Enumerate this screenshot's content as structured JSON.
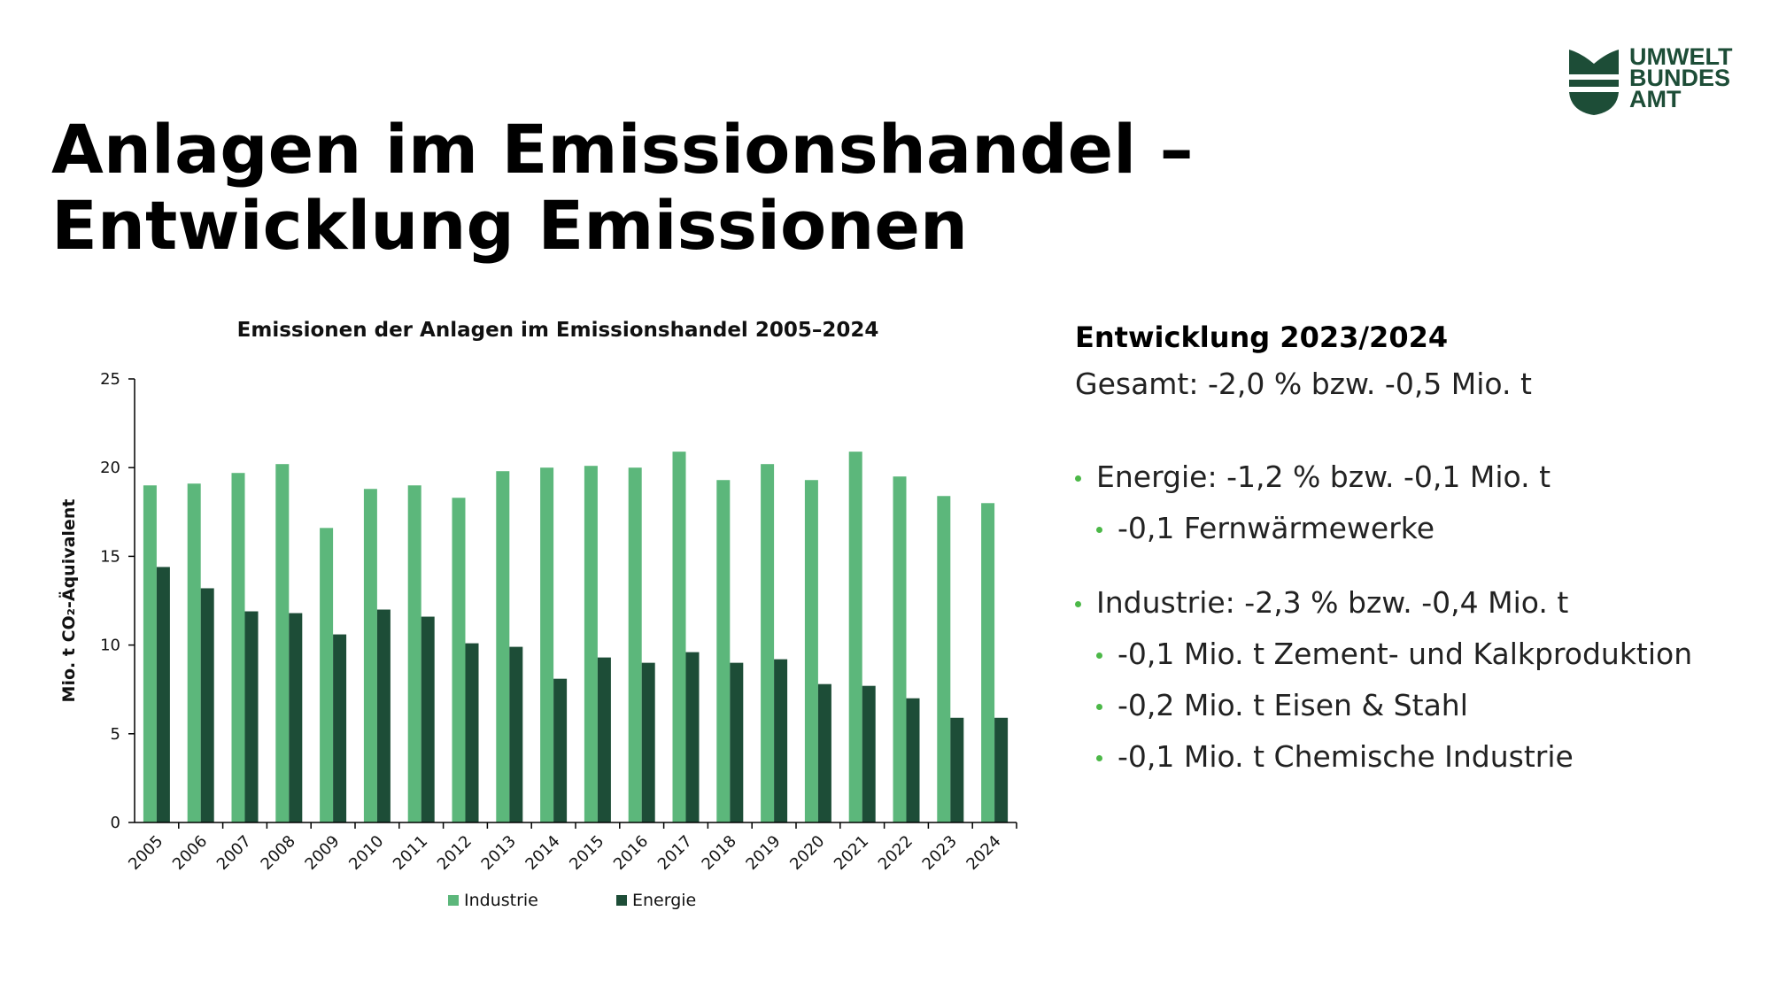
{
  "header": {
    "title_lines": [
      "Anlagen im Emissionshandel –",
      "Entwicklung Emissionen"
    ],
    "logo_lines": [
      "UMWELT",
      "BUNDES",
      "AMT"
    ]
  },
  "chart_data": {
    "type": "bar",
    "title": "Emissionen der Anlagen im Emissionshandel 2005–2024",
    "y_label": "Mio. t CO₂-Äquivalent",
    "categories": [
      "2005",
      "2006",
      "2007",
      "2008",
      "2009",
      "2010",
      "2011",
      "2012",
      "2013",
      "2014",
      "2015",
      "2016",
      "2017",
      "2018",
      "2019",
      "2020",
      "2021",
      "2022",
      "2023",
      "2024"
    ],
    "series": [
      {
        "name": "Industrie",
        "color": "#5cb77b",
        "values": [
          19.0,
          19.1,
          19.7,
          20.2,
          16.6,
          18.8,
          19.0,
          18.3,
          19.8,
          20.0,
          20.1,
          20.0,
          20.9,
          19.3,
          20.2,
          19.3,
          20.9,
          19.5,
          18.4,
          18.0
        ]
      },
      {
        "name": "Energie",
        "color": "#1d4d37",
        "values": [
          14.4,
          13.2,
          11.9,
          11.8,
          10.6,
          12.0,
          11.6,
          10.1,
          9.9,
          8.1,
          9.3,
          9.0,
          9.6,
          9.0,
          9.2,
          7.8,
          7.7,
          7.0,
          5.9,
          5.9
        ]
      }
    ],
    "ylim": [
      0,
      25
    ],
    "yticks": [
      0,
      5,
      10,
      15,
      20,
      25
    ],
    "grid": false
  },
  "summary": {
    "heading": "Entwicklung 2023/2024",
    "total": "Gesamt: -2,0 % bzw. -0,5 Mio. t",
    "groups": [
      {
        "text": "Energie: -1,2 % bzw. -0,1 Mio. t",
        "sub": [
          "-0,1 Fernwärmewerke"
        ]
      },
      {
        "text": "Industrie: -2,3 % bzw. -0,4 Mio. t",
        "sub": [
          "-0,1 Mio. t Zement- und Kalkproduktion",
          "-0,2 Mio. t Eisen & Stahl",
          "-0,1 Mio. t Chemische Industrie"
        ]
      }
    ]
  }
}
